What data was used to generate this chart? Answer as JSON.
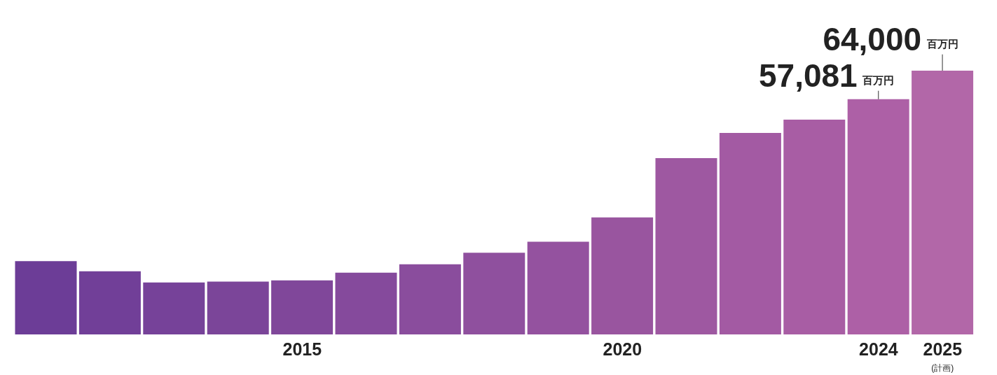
{
  "chart_data": {
    "type": "bar",
    "categories": [
      null,
      null,
      null,
      null,
      "2015",
      null,
      null,
      null,
      null,
      "2020",
      null,
      null,
      null,
      "2024",
      "2025"
    ],
    "values": [
      17800,
      15300,
      12600,
      12800,
      13100,
      15000,
      17000,
      19800,
      22500,
      28400,
      42800,
      48900,
      52100,
      57081,
      64000
    ],
    "colors": [
      "#6c3d97",
      "#713f98",
      "#764299",
      "#7b4599",
      "#80479a",
      "#854a9c",
      "#8a4d9d",
      "#8f509e",
      "#94529f",
      "#99559f",
      "#9e58a1",
      "#a35aa3",
      "#a85da4",
      "#ad60a6",
      "#b267a8"
    ],
    "value_labels": [
      null,
      null,
      null,
      null,
      null,
      null,
      null,
      null,
      null,
      null,
      null,
      null,
      null,
      "57,081百万円",
      "64,000百万円"
    ],
    "tick_labels": "x",
    "annotations": [
      "(計画)"
    ]
  }
}
